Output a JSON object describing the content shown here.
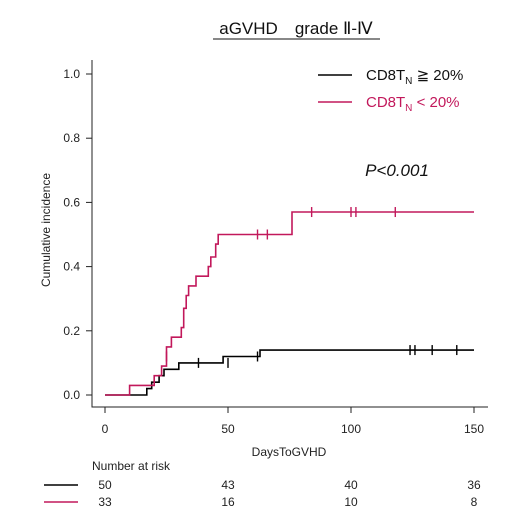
{
  "chart_data": {
    "type": "line",
    "step": true,
    "title": "aGVHD　grade Ⅱ-Ⅳ",
    "xlabel": "DaysToGVHD",
    "ylabel": "Cumulative incidence",
    "xlim": [
      0,
      150
    ],
    "ylim": [
      0,
      1.0
    ],
    "x_ticks": [
      0,
      50,
      100,
      150
    ],
    "x_tick_labels": [
      "0",
      "50",
      "100",
      "150"
    ],
    "y_ticks": [
      0,
      0.2,
      0.4,
      0.6,
      0.8,
      1.0
    ],
    "y_tick_labels": [
      "0.0",
      "0.2",
      "0.4",
      "0.6",
      "0.8",
      "1.0"
    ],
    "grid": false,
    "legend_position": "top-right",
    "annotation": "P<0.001",
    "series": [
      {
        "name_main": "CD8T",
        "name_sub": "N",
        "name_rest": " ≧ 20%",
        "color": "#000000",
        "steps": [
          [
            0,
            0
          ],
          [
            17,
            0
          ],
          [
            17,
            0.02
          ],
          [
            19,
            0.02
          ],
          [
            19,
            0.04
          ],
          [
            22,
            0.04
          ],
          [
            22,
            0.06
          ],
          [
            24,
            0.06
          ],
          [
            24,
            0.08
          ],
          [
            30,
            0.08
          ],
          [
            30,
            0.1
          ],
          [
            48,
            0.1
          ],
          [
            48,
            0.12
          ],
          [
            63,
            0.12
          ],
          [
            63,
            0.14
          ],
          [
            150,
            0.14
          ]
        ],
        "censors": [
          [
            38,
            0.1
          ],
          [
            50,
            0.1
          ],
          [
            62,
            0.12
          ],
          [
            124,
            0.14
          ],
          [
            126,
            0.14
          ],
          [
            133,
            0.14
          ],
          [
            143,
            0.14
          ]
        ]
      },
      {
        "name_main": "CD8T",
        "name_sub": "N",
        "name_rest": " < 20%",
        "color": "#c2185b",
        "steps": [
          [
            0,
            0
          ],
          [
            10,
            0
          ],
          [
            10,
            0.03
          ],
          [
            20,
            0.03
          ],
          [
            20,
            0.06
          ],
          [
            23,
            0.06
          ],
          [
            23,
            0.09
          ],
          [
            25,
            0.09
          ],
          [
            25,
            0.15
          ],
          [
            27,
            0.15
          ],
          [
            27,
            0.18
          ],
          [
            31,
            0.18
          ],
          [
            31,
            0.21
          ],
          [
            32,
            0.21
          ],
          [
            32,
            0.27
          ],
          [
            33,
            0.27
          ],
          [
            33,
            0.31
          ],
          [
            34,
            0.31
          ],
          [
            34,
            0.34
          ],
          [
            37,
            0.34
          ],
          [
            37,
            0.37
          ],
          [
            42,
            0.37
          ],
          [
            42,
            0.4
          ],
          [
            43,
            0.4
          ],
          [
            43,
            0.43
          ],
          [
            45,
            0.43
          ],
          [
            45,
            0.47
          ],
          [
            46,
            0.47
          ],
          [
            46,
            0.5
          ],
          [
            76,
            0.5
          ],
          [
            76,
            0.57
          ],
          [
            150,
            0.57
          ]
        ],
        "censors": [
          [
            25,
            0.12
          ],
          [
            62,
            0.5
          ],
          [
            66,
            0.5
          ],
          [
            84,
            0.57
          ],
          [
            100,
            0.57
          ],
          [
            102,
            0.57
          ],
          [
            118,
            0.57
          ]
        ]
      }
    ],
    "risk_table": {
      "title": "Number at risk",
      "times": [
        0,
        50,
        100,
        150
      ],
      "rows": [
        {
          "color": "#000000",
          "values": [
            "50",
            "43",
            "40",
            "36"
          ]
        },
        {
          "color": "#c2185b",
          "values": [
            "33",
            "16",
            "10",
            "8"
          ]
        }
      ]
    }
  }
}
